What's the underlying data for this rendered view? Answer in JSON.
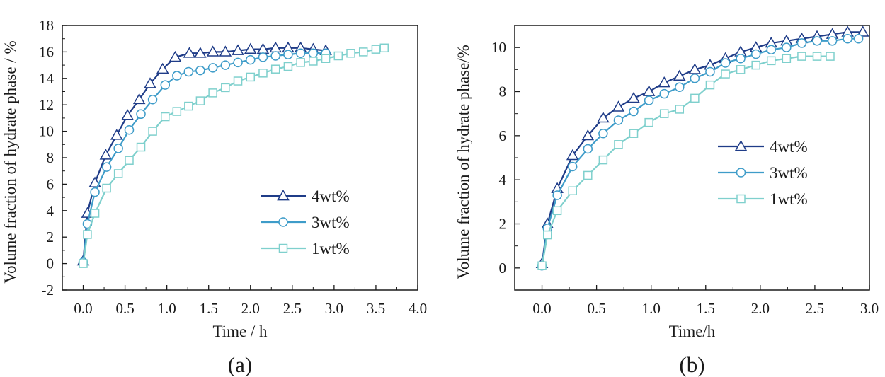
{
  "colors": {
    "s4": "#1f3c88",
    "s3": "#3e9cc9",
    "s1": "#7fd0cd",
    "axis": "#1a1a1a"
  },
  "chart_data": [
    {
      "type": "line",
      "panel_label": "(a)",
      "xlabel": "Time / h",
      "ylabel": "Volume fraction of hydrate phase / %",
      "xlim": [
        -0.25,
        4.0
      ],
      "ylim": [
        -2,
        18
      ],
      "xticks": [
        0,
        0.5,
        1,
        1.5,
        2,
        2.5,
        3,
        3.5,
        4
      ],
      "xtick_labels": [
        "0.0",
        "0.5",
        "1.0",
        "1.5",
        "2.0",
        "2.5",
        "3.0",
        "3.5",
        "4.0"
      ],
      "yticks": [
        -2,
        0,
        2,
        4,
        6,
        8,
        10,
        12,
        14,
        16,
        18
      ],
      "ytick_labels": [
        "-2",
        "0",
        "2",
        "4",
        "6",
        "8",
        "10",
        "12",
        "14",
        "16",
        "18"
      ],
      "legend_position": "lower-right",
      "series": [
        {
          "name": "4wt%",
          "color_key": "s4",
          "marker": "triangle",
          "x": [
            0.0,
            0.05,
            0.14,
            0.27,
            0.4,
            0.53,
            0.67,
            0.8,
            0.95,
            1.1,
            1.27,
            1.4,
            1.55,
            1.7,
            1.85,
            2.0,
            2.15,
            2.3,
            2.45,
            2.6,
            2.75,
            2.9
          ],
          "y": [
            0.2,
            3.8,
            6.1,
            8.2,
            9.7,
            11.2,
            12.4,
            13.6,
            14.7,
            15.6,
            15.9,
            15.9,
            16.0,
            16.0,
            16.1,
            16.2,
            16.2,
            16.3,
            16.3,
            16.3,
            16.2,
            16.1
          ]
        },
        {
          "name": "3wt%",
          "color_key": "s3",
          "marker": "circle",
          "x": [
            0.0,
            0.05,
            0.14,
            0.28,
            0.42,
            0.55,
            0.69,
            0.83,
            0.98,
            1.12,
            1.26,
            1.4,
            1.55,
            1.7,
            1.85,
            2.0,
            2.15,
            2.3,
            2.45,
            2.6,
            2.75,
            2.9
          ],
          "y": [
            0.1,
            3.0,
            5.4,
            7.3,
            8.7,
            10.1,
            11.3,
            12.4,
            13.5,
            14.2,
            14.5,
            14.6,
            14.8,
            15.0,
            15.2,
            15.4,
            15.6,
            15.7,
            15.8,
            15.9,
            15.9,
            15.9
          ]
        },
        {
          "name": "1wt%",
          "color_key": "s1",
          "marker": "square",
          "x": [
            0.0,
            0.05,
            0.14,
            0.28,
            0.42,
            0.55,
            0.69,
            0.83,
            0.98,
            1.12,
            1.26,
            1.4,
            1.55,
            1.7,
            1.85,
            2.0,
            2.15,
            2.3,
            2.45,
            2.6,
            2.75,
            2.9,
            3.05,
            3.2,
            3.35,
            3.5,
            3.6
          ],
          "y": [
            0.0,
            2.2,
            3.8,
            5.7,
            6.8,
            7.8,
            8.8,
            10.0,
            11.1,
            11.5,
            11.9,
            12.3,
            12.9,
            13.3,
            13.8,
            14.1,
            14.4,
            14.7,
            14.9,
            15.2,
            15.3,
            15.5,
            15.7,
            15.9,
            16.0,
            16.2,
            16.3
          ]
        }
      ]
    },
    {
      "type": "line",
      "panel_label": "(b)",
      "xlabel": "Time/h",
      "ylabel": "Volume fraction of hydrate phase/%",
      "xlim": [
        -0.25,
        3.0
      ],
      "ylim": [
        -1,
        11
      ],
      "xticks": [
        0,
        0.5,
        1,
        1.5,
        2,
        2.5,
        3
      ],
      "xtick_labels": [
        "0.0",
        "0.5",
        "1.0",
        "1.5",
        "2.0",
        "2.5",
        "3.0"
      ],
      "yticks": [
        0,
        2,
        4,
        6,
        8,
        10
      ],
      "ytick_labels": [
        "0",
        "2",
        "4",
        "6",
        "8",
        "10"
      ],
      "legend_position": "center-right",
      "series": [
        {
          "name": "4wt%",
          "color_key": "s4",
          "marker": "triangle",
          "x": [
            0.0,
            0.05,
            0.14,
            0.28,
            0.42,
            0.56,
            0.7,
            0.84,
            0.98,
            1.12,
            1.26,
            1.4,
            1.54,
            1.68,
            1.82,
            1.96,
            2.1,
            2.24,
            2.38,
            2.52,
            2.66,
            2.8,
            2.94
          ],
          "y": [
            0.2,
            2.0,
            3.6,
            5.1,
            6.0,
            6.8,
            7.3,
            7.7,
            8.0,
            8.4,
            8.7,
            9.0,
            9.2,
            9.5,
            9.8,
            10.0,
            10.2,
            10.3,
            10.4,
            10.5,
            10.6,
            10.7,
            10.7
          ]
        },
        {
          "name": "3wt%",
          "color_key": "s3",
          "marker": "circle",
          "x": [
            0.0,
            0.05,
            0.14,
            0.28,
            0.42,
            0.56,
            0.7,
            0.84,
            0.98,
            1.12,
            1.26,
            1.4,
            1.54,
            1.68,
            1.82,
            1.96,
            2.1,
            2.24,
            2.38,
            2.52,
            2.66,
            2.8,
            2.9
          ],
          "y": [
            0.1,
            1.8,
            3.3,
            4.6,
            5.4,
            6.1,
            6.7,
            7.1,
            7.6,
            7.9,
            8.2,
            8.6,
            8.9,
            9.3,
            9.5,
            9.7,
            9.9,
            10.0,
            10.2,
            10.3,
            10.3,
            10.4,
            10.4
          ]
        },
        {
          "name": "1wt%",
          "color_key": "s1",
          "marker": "square",
          "x": [
            0.0,
            0.05,
            0.14,
            0.28,
            0.42,
            0.56,
            0.7,
            0.84,
            0.98,
            1.12,
            1.26,
            1.4,
            1.54,
            1.68,
            1.82,
            1.96,
            2.1,
            2.24,
            2.38,
            2.52,
            2.64
          ],
          "y": [
            0.1,
            1.5,
            2.6,
            3.5,
            4.2,
            4.9,
            5.6,
            6.1,
            6.6,
            7.0,
            7.2,
            7.7,
            8.3,
            8.8,
            9.0,
            9.2,
            9.4,
            9.5,
            9.6,
            9.6,
            9.6
          ]
        }
      ]
    }
  ]
}
